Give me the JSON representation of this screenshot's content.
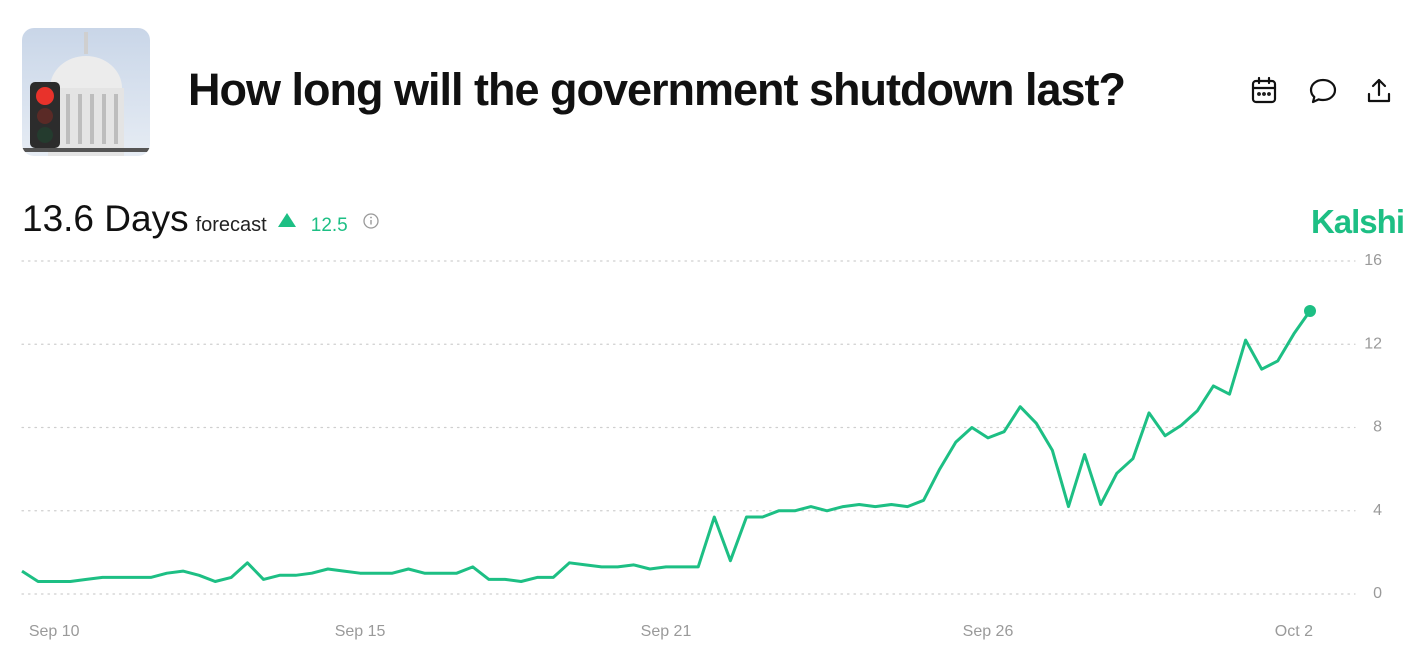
{
  "header": {
    "title": "How long will the government shutdown last?",
    "headline": "13.6 Days",
    "forecast_label": "forecast",
    "change": "12.5",
    "brand": "Kalshi"
  },
  "chart_data": {
    "type": "line",
    "color": "#1dbf84",
    "categories": [
      null,
      null,
      "Sep 10",
      null,
      null,
      null,
      null,
      null,
      null,
      null,
      null,
      null,
      null,
      null,
      null,
      null,
      null,
      null,
      null,
      null,
      null,
      "Sep 15",
      null,
      null,
      null,
      null,
      null,
      null,
      null,
      null,
      null,
      null,
      null,
      null,
      null,
      null,
      null,
      null,
      null,
      null,
      "Sep 21",
      null,
      null,
      null,
      null,
      null,
      null,
      null,
      null,
      null,
      null,
      null,
      null,
      null,
      null,
      null,
      null,
      null,
      null,
      null,
      "Sep 26",
      null,
      null,
      null,
      null,
      null,
      null,
      null,
      null,
      null,
      null,
      null,
      null,
      null,
      null,
      null,
      null,
      null,
      null,
      "Oct 2",
      null
    ],
    "values": [
      1.1,
      0.6,
      0.6,
      0.6,
      0.7,
      0.8,
      0.8,
      0.8,
      0.8,
      1.0,
      1.1,
      0.9,
      0.6,
      0.8,
      1.5,
      0.7,
      0.9,
      0.9,
      1.0,
      1.2,
      1.1,
      1.0,
      1.0,
      1.0,
      1.2,
      1.0,
      1.0,
      1.0,
      1.3,
      0.7,
      0.7,
      0.6,
      0.8,
      0.8,
      1.5,
      1.4,
      1.3,
      1.3,
      1.4,
      1.2,
      1.3,
      1.3,
      1.3,
      3.7,
      1.6,
      3.7,
      3.7,
      4.0,
      4.0,
      4.2,
      4.0,
      4.2,
      4.3,
      4.2,
      4.3,
      4.2,
      4.5,
      6.0,
      7.3,
      8.0,
      7.5,
      7.8,
      9.0,
      8.2,
      6.9,
      4.2,
      6.7,
      4.3,
      5.8,
      6.5,
      8.7,
      7.6,
      8.1,
      8.8,
      10.0,
      9.6,
      12.2,
      10.8,
      11.2,
      12.5,
      13.6
    ],
    "ylim": [
      0,
      16
    ],
    "yticks": [
      0,
      4,
      8,
      12,
      16
    ],
    "grid": true
  }
}
